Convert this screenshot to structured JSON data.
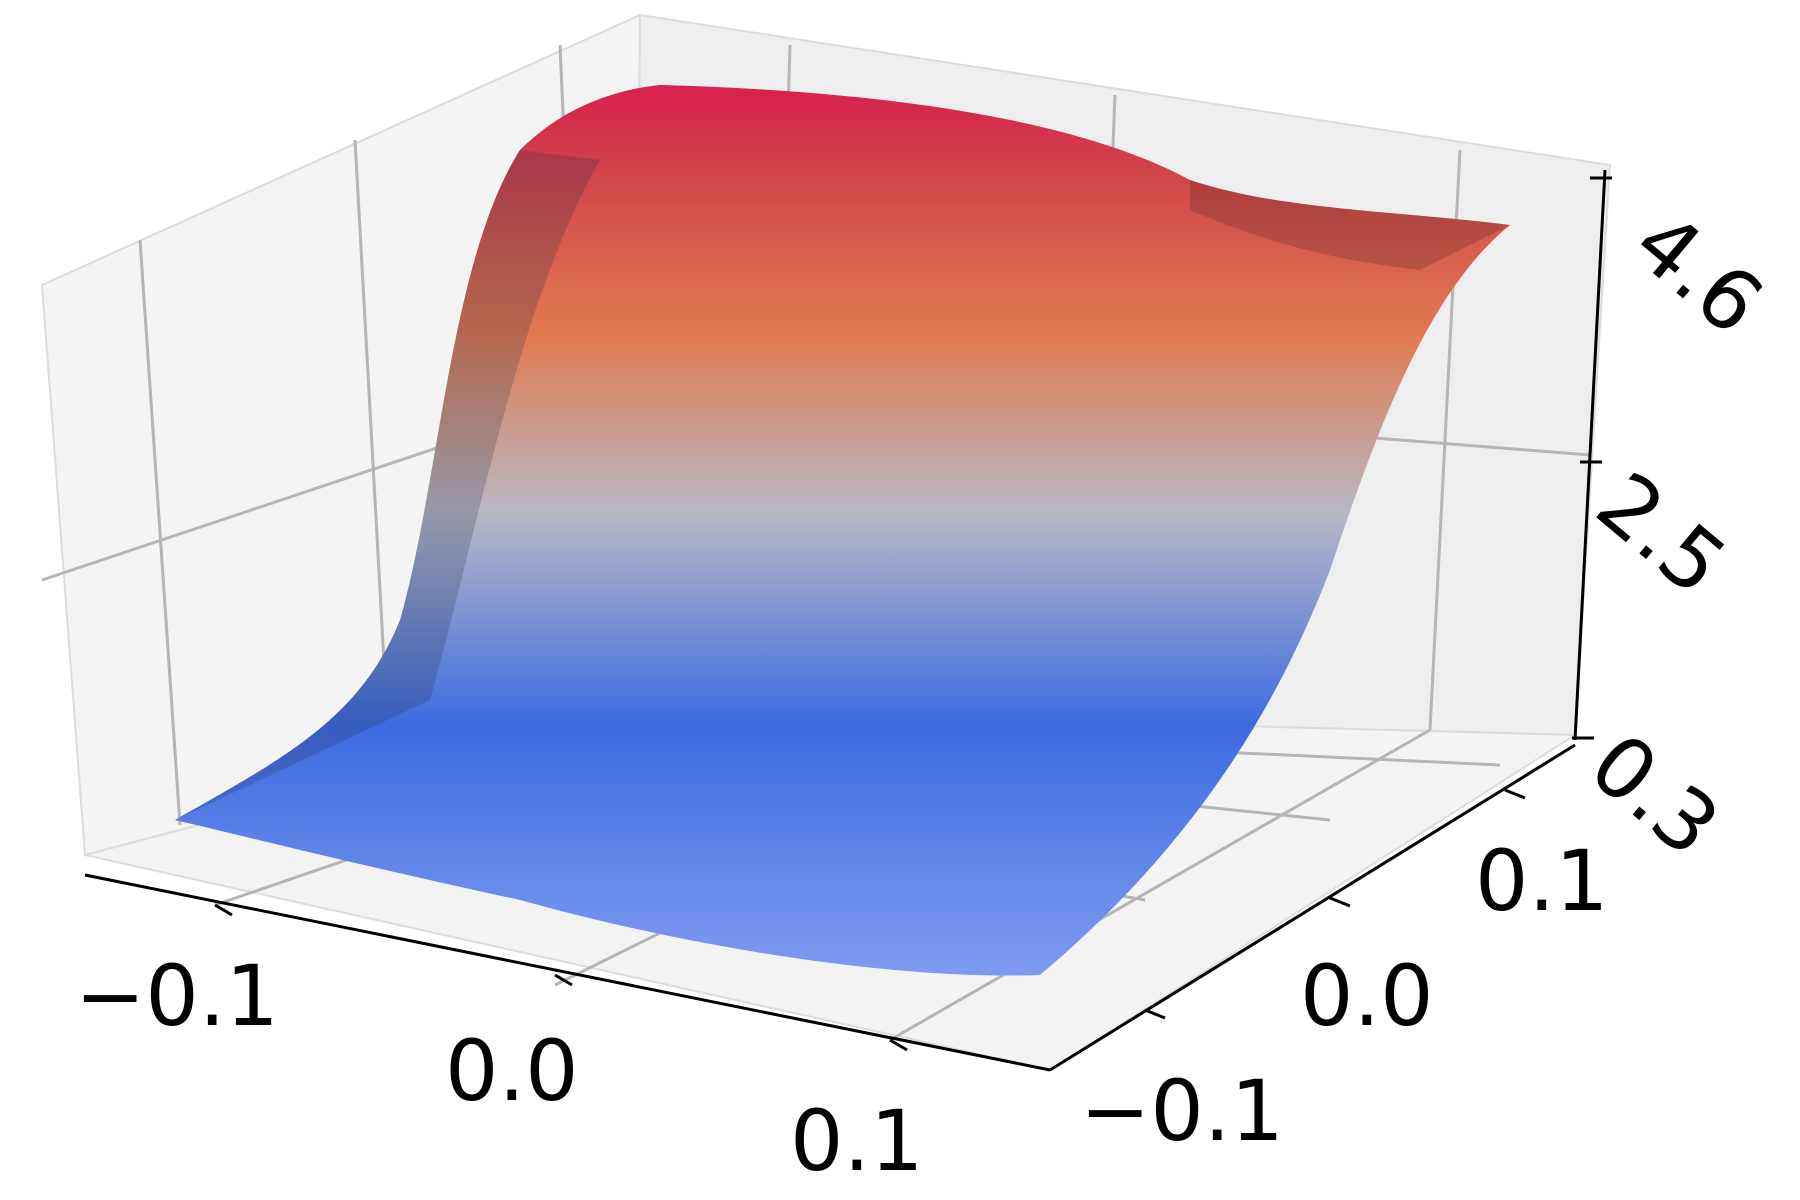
{
  "chart_data": {
    "type": "surface",
    "x_ticks": [
      "−0.1",
      "0.0",
      "0.1"
    ],
    "y_ticks": [
      "−0.1",
      "0.0",
      "0.1"
    ],
    "z_ticks": [
      "0.3",
      "2.5",
      "4.6"
    ],
    "x_tick_values": [
      -0.1,
      0.0,
      0.1
    ],
    "y_tick_values": [
      -0.1,
      0.0,
      0.1
    ],
    "z_tick_values": [
      0.3,
      2.5,
      4.6
    ],
    "xlim": [
      -0.15,
      0.15
    ],
    "ylim": [
      -0.15,
      0.15
    ],
    "zlim": [
      0.3,
      4.8
    ],
    "surface": {
      "description_function": "sigmoid step in y: z rises from ~0.3 at low y to ~4.6 at high y",
      "z_min": 0.3,
      "z_max": 4.6
    },
    "colormap": [
      "#7b96e8",
      "#3b68d8",
      "#b0b4c0",
      "#e07a50",
      "#d62a4a"
    ],
    "grid": true
  }
}
